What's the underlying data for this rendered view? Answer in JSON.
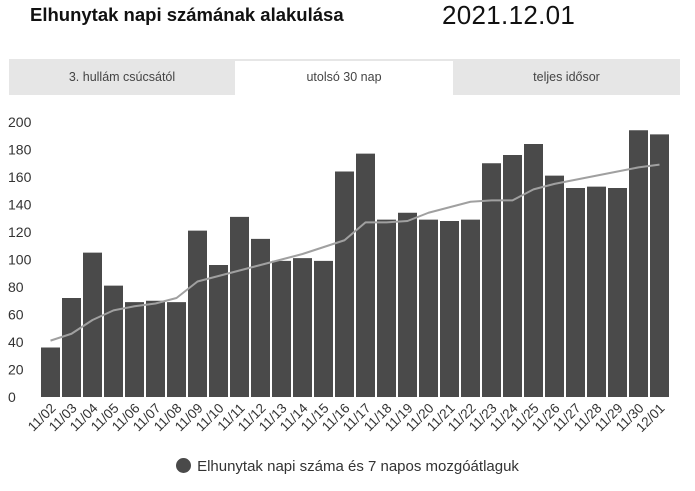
{
  "header": {
    "title": "Elhunytak napi számának alakulása",
    "date": "2021.12.01"
  },
  "tabs": [
    {
      "label": "3. hullám csúcsától",
      "active": false
    },
    {
      "label": "utolsó 30 nap",
      "active": true
    },
    {
      "label": "teljes idősor",
      "active": false
    }
  ],
  "colors": {
    "bar": "#4a4a4a",
    "line": "#a0a0a0",
    "tab_bg": "#e6e6e6",
    "tab_active_bg": "#ffffff"
  },
  "chart_data": {
    "type": "bar",
    "categories": [
      "11/02",
      "11/03",
      "11/04",
      "11/05",
      "11/06",
      "11/07",
      "11/08",
      "11/09",
      "11/10",
      "11/11",
      "11/12",
      "11/13",
      "11/14",
      "11/15",
      "11/16",
      "11/17",
      "11/18",
      "11/19",
      "11/20",
      "11/21",
      "11/22",
      "11/23",
      "11/24",
      "11/25",
      "11/26",
      "11/27",
      "11/28",
      "11/29",
      "11/30",
      "12/01"
    ],
    "series": [
      {
        "name": "Elhunytak napi száma és 7 napos mozgóátlaguk",
        "type": "bar",
        "values": [
          36,
          72,
          105,
          81,
          69,
          70,
          69,
          121,
          96,
          131,
          115,
          99,
          101,
          99,
          164,
          177,
          129,
          134,
          129,
          128,
          129,
          170,
          176,
          184,
          161,
          152,
          153,
          152,
          194,
          191
        ]
      },
      {
        "name": "",
        "type": "line",
        "values": [
          41,
          46,
          56,
          63,
          66,
          68,
          72,
          84,
          88,
          92,
          96,
          100,
          104,
          109,
          114,
          127,
          127,
          128,
          134,
          138,
          142,
          143,
          143,
          151,
          155,
          158,
          161,
          164,
          167,
          169
        ]
      }
    ],
    "yticks": [
      0,
      20,
      40,
      60,
      80,
      100,
      120,
      140,
      160,
      180,
      200
    ],
    "ylim": [
      0,
      205
    ],
    "legend": {
      "label": "Elhunytak napi száma és 7 napos mozgóátlaguk",
      "position": "bottom"
    },
    "grid": false
  }
}
